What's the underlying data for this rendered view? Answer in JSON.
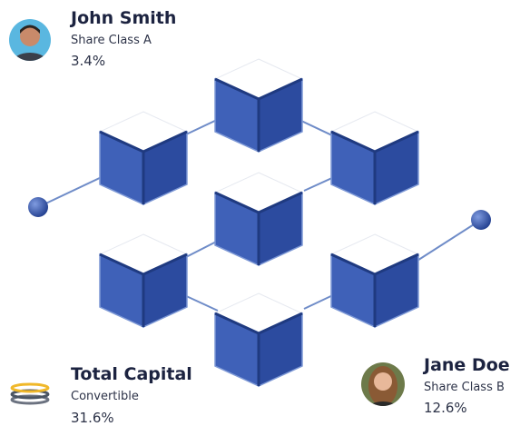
{
  "cards": [
    {
      "name": "John Smith",
      "class": "Share Class A",
      "percent": "3.4%"
    },
    {
      "name": "Total Capital",
      "class": "Convertible",
      "percent": "31.6%"
    },
    {
      "name": "Jane Doe",
      "class": "Share Class B",
      "percent": "12.6%"
    }
  ]
}
